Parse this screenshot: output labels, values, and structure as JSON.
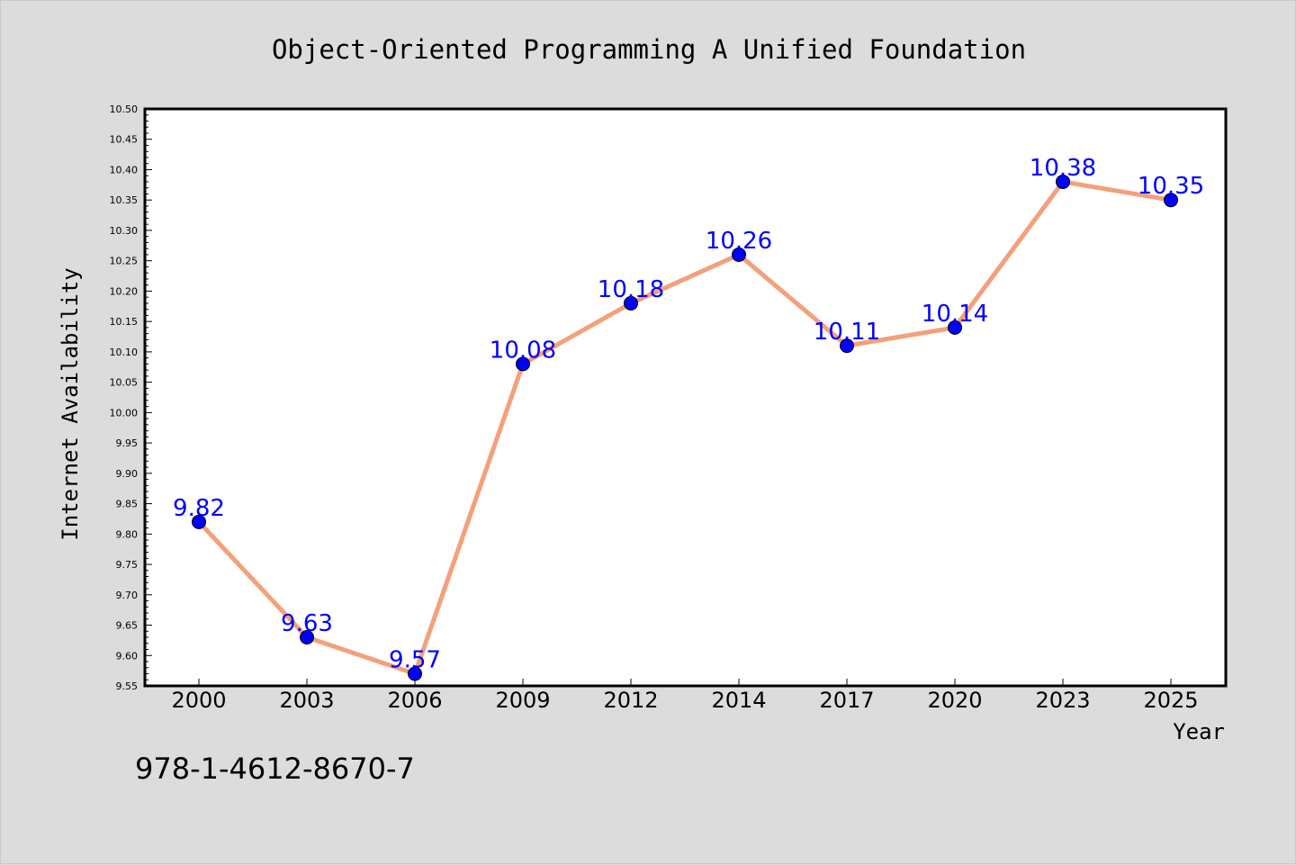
{
  "chart_data": {
    "type": "line",
    "title": "Object-Oriented Programming A Unified Foundation",
    "xlabel": "Year",
    "ylabel": "Internet Availability",
    "categories": [
      "2000",
      "2003",
      "2006",
      "2009",
      "2012",
      "2014",
      "2017",
      "2020",
      "2023",
      "2025"
    ],
    "series": [
      {
        "values": [
          9.82,
          9.63,
          9.57,
          10.08,
          10.18,
          10.26,
          10.11,
          10.14,
          10.38,
          10.35
        ],
        "labels": [
          "9.82",
          "9.63",
          "9.57",
          "10.08",
          "10.18",
          "10.26",
          "10.11",
          "10.14",
          "10.38",
          "10.35"
        ],
        "line_color": "#f4a07a",
        "marker_color": "#0000ff"
      }
    ],
    "ylim": [
      9.55,
      10.5
    ],
    "yticks": [
      "9.55",
      "9.60",
      "9.65",
      "9.70",
      "9.75",
      "9.80",
      "9.85",
      "9.90",
      "9.95",
      "10.00",
      "10.05",
      "10.10",
      "10.15",
      "10.20",
      "10.25",
      "10.30",
      "10.35",
      "10.40",
      "10.45",
      "10.50"
    ],
    "grid": false,
    "legend": "none",
    "data_label_color": "#0000ff",
    "background_color": "#dcdcdc",
    "plot_background": "#ffffff"
  },
  "footer": {
    "isbn": "978-1-4612-8670-7"
  }
}
